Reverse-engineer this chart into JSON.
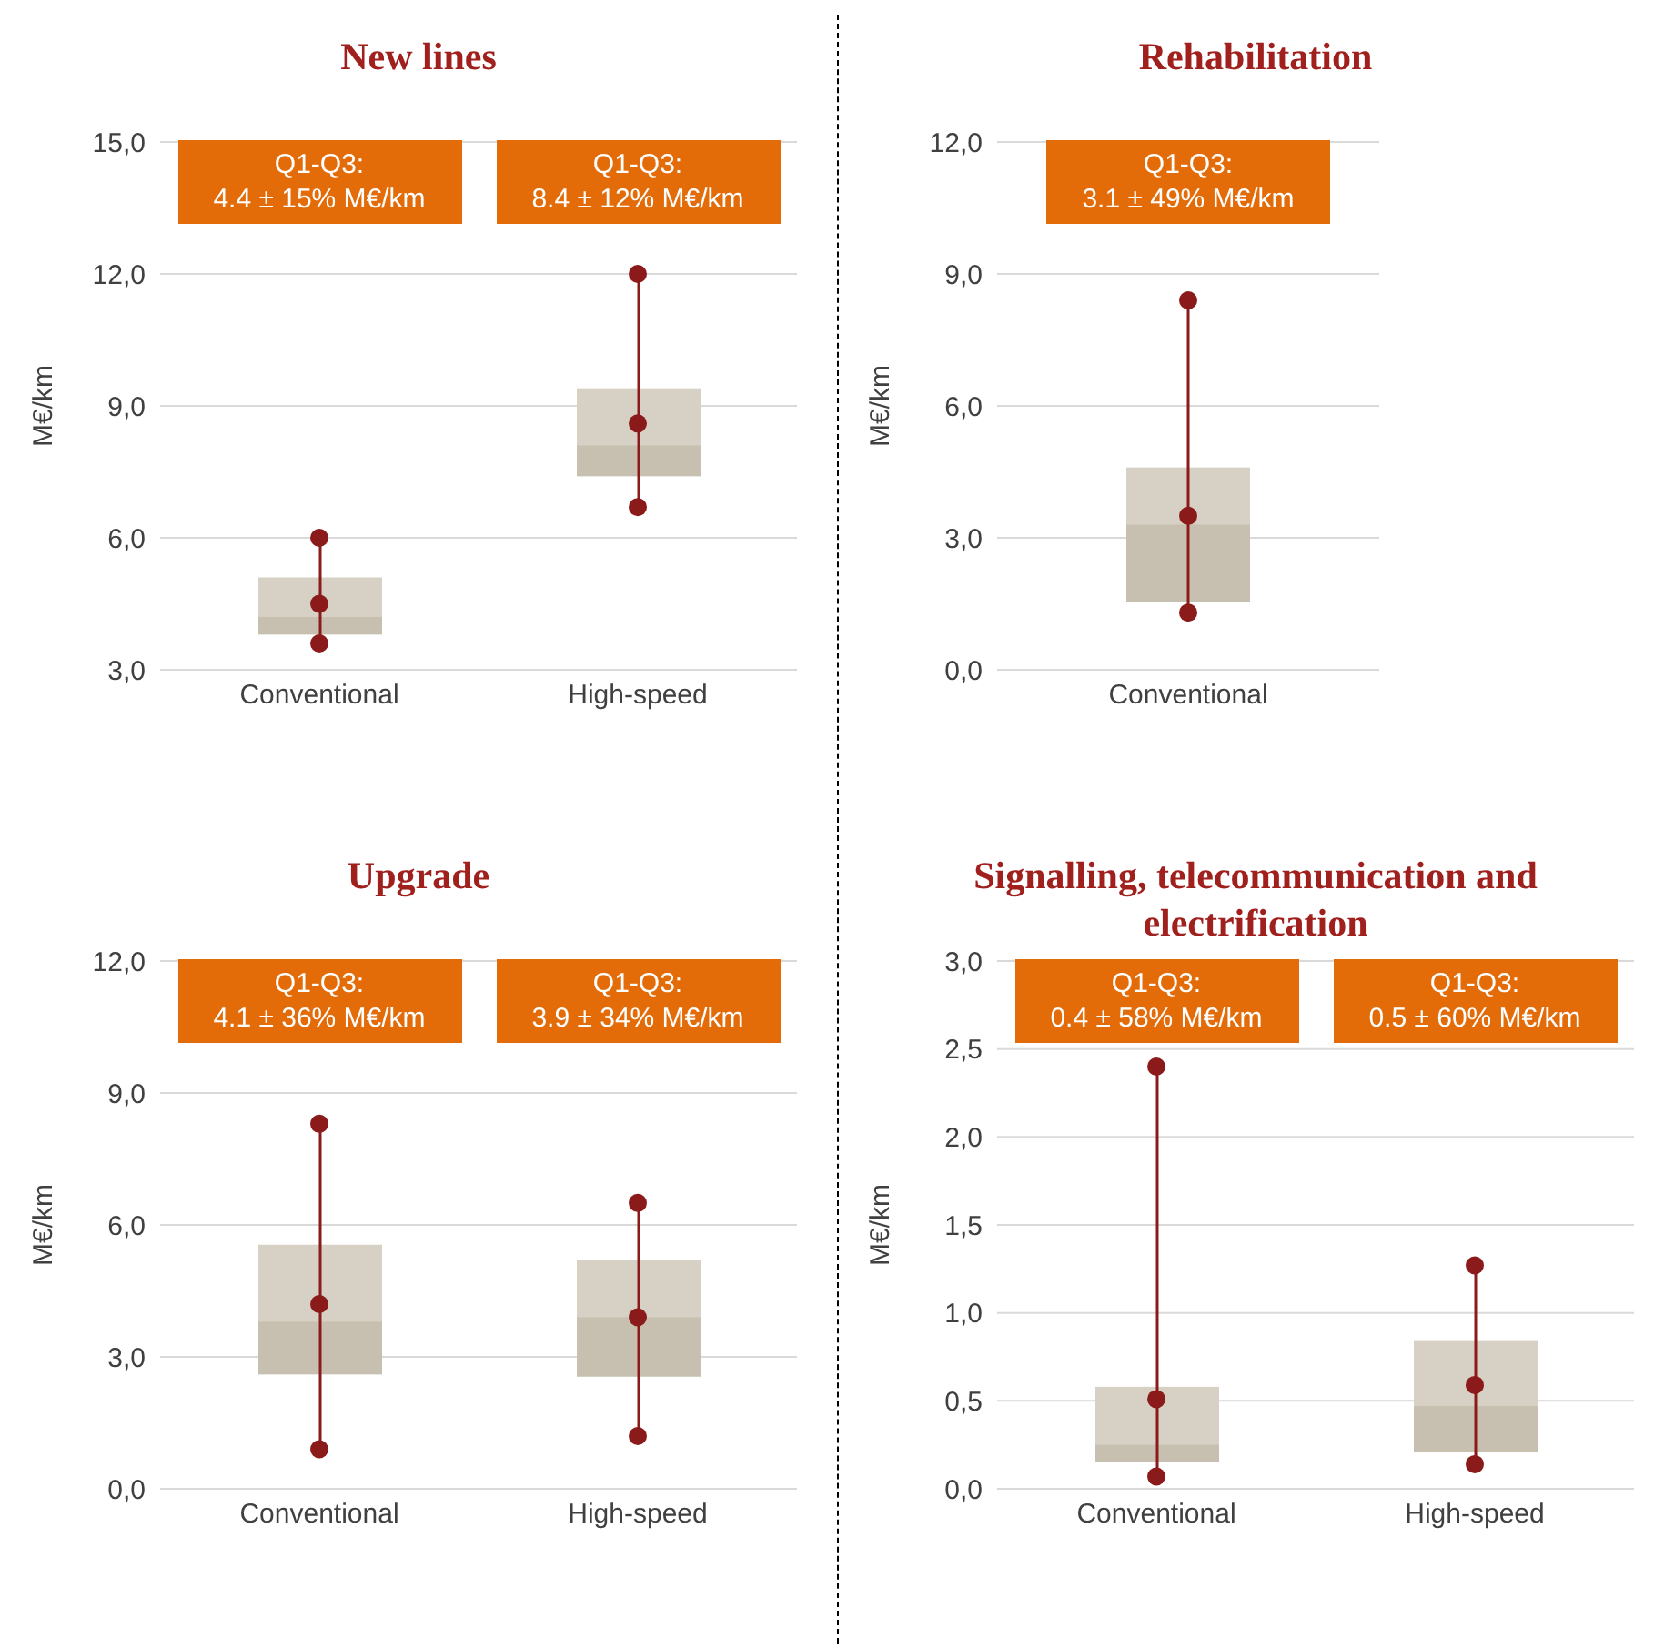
{
  "chart_data": [
    {
      "type": "box",
      "title": "New lines",
      "ylabel": "M€/km",
      "categories": [
        "Conventional",
        "High-speed"
      ],
      "series": [
        {
          "color": "#d6d1c4",
          "boxes": [
            {
              "low": 3.6,
              "q1": 3.8,
              "median": 4.2,
              "q3": 5.1,
              "high": 6.0
            },
            {
              "low": 6.7,
              "q1": 7.4,
              "median": 8.1,
              "q3": 9.4,
              "high": 12.0
            }
          ]
        },
        {
          "type": "scatter",
          "color": "#8b1a1a",
          "marker": "circle",
          "x": [
            "Conventional",
            "Conventional",
            "Conventional",
            "High-speed",
            "High-speed",
            "High-speed"
          ],
          "values": [
            3.6,
            4.5,
            6.0,
            6.7,
            8.6,
            12.0
          ]
        }
      ],
      "ylim": [
        3,
        15
      ],
      "yticks": [
        {
          "value": 3,
          "label": "3,0"
        },
        {
          "value": 6,
          "label": "6,0"
        },
        {
          "value": 9,
          "label": "9,0"
        },
        {
          "value": 12,
          "label": "12,0"
        },
        {
          "value": 15,
          "label": "15,0"
        }
      ],
      "grid": "y",
      "legend": false,
      "annotations": [
        "Q1-Q3:\n4.4 ± 15% M€/km",
        "Q1-Q3:\n8.4 ± 12% M€/km"
      ]
    },
    {
      "type": "box",
      "title": "Rehabilitation",
      "ylabel": "M€/km",
      "categories": [
        "Conventional"
      ],
      "series": [
        {
          "color": "#d6d1c4",
          "boxes": [
            {
              "low": 1.3,
              "q1": 1.55,
              "median": 3.3,
              "q3": 4.6,
              "high": 8.4
            }
          ]
        },
        {
          "type": "scatter",
          "color": "#8b1a1a",
          "marker": "circle",
          "x": [
            "Conventional",
            "Conventional",
            "Conventional"
          ],
          "values": [
            1.3,
            3.5,
            8.4
          ]
        }
      ],
      "ylim": [
        0,
        12
      ],
      "yticks": [
        {
          "value": 0,
          "label": "0,0"
        },
        {
          "value": 3,
          "label": "3,0"
        },
        {
          "value": 6,
          "label": "6,0"
        },
        {
          "value": 9,
          "label": "9,0"
        },
        {
          "value": 12,
          "label": "12,0"
        }
      ],
      "grid": "y",
      "legend": false,
      "annotations": [
        "Q1-Q3:\n3.1 ± 49% M€/km"
      ]
    },
    {
      "type": "box",
      "title": "Upgrade",
      "ylabel": "M€/km",
      "categories": [
        "Conventional",
        "High-speed"
      ],
      "series": [
        {
          "color": "#d6d1c4",
          "boxes": [
            {
              "low": 0.9,
              "q1": 2.6,
              "median": 3.8,
              "q3": 5.55,
              "high": 8.3
            },
            {
              "low": 1.2,
              "q1": 2.55,
              "median": 3.9,
              "q3": 5.2,
              "high": 6.5
            }
          ]
        },
        {
          "type": "scatter",
          "color": "#8b1a1a",
          "marker": "circle",
          "x": [
            "Conventional",
            "Conventional",
            "Conventional",
            "High-speed",
            "High-speed",
            "High-speed"
          ],
          "values": [
            0.9,
            4.2,
            8.3,
            1.2,
            3.9,
            6.5
          ]
        }
      ],
      "ylim": [
        0,
        12
      ],
      "yticks": [
        {
          "value": 0,
          "label": "0,0"
        },
        {
          "value": 3,
          "label": "3,0"
        },
        {
          "value": 6,
          "label": "6,0"
        },
        {
          "value": 9,
          "label": "9,0"
        },
        {
          "value": 12,
          "label": "12,0"
        }
      ],
      "grid": "y",
      "legend": false,
      "annotations": [
        "Q1-Q3:\n4.1 ± 36% M€/km",
        "Q1-Q3:\n3.9 ± 34% M€/km"
      ]
    },
    {
      "type": "box",
      "title": "Signalling, telecommunication and electrification",
      "ylabel": "M€/km",
      "categories": [
        "Conventional",
        "High-speed"
      ],
      "series": [
        {
          "color": "#d6d1c4",
          "boxes": [
            {
              "low": 0.07,
              "q1": 0.15,
              "median": 0.25,
              "q3": 0.58,
              "high": 2.4
            },
            {
              "low": 0.14,
              "q1": 0.21,
              "median": 0.47,
              "q3": 0.84,
              "high": 1.27
            }
          ]
        },
        {
          "type": "scatter",
          "color": "#8b1a1a",
          "marker": "circle",
          "x": [
            "Conventional",
            "Conventional",
            "Conventional",
            "High-speed",
            "High-speed",
            "High-speed"
          ],
          "values": [
            0.07,
            0.51,
            2.4,
            0.14,
            0.59,
            1.27
          ]
        }
      ],
      "ylim": [
        0,
        3
      ],
      "yticks": [
        {
          "value": 0,
          "label": "0,0"
        },
        {
          "value": 0.5,
          "label": "0,5"
        },
        {
          "value": 1,
          "label": "1,0"
        },
        {
          "value": 1.5,
          "label": "1,5"
        },
        {
          "value": 2,
          "label": "2,0"
        },
        {
          "value": 2.5,
          "label": "2,5"
        },
        {
          "value": 3,
          "label": "3,0"
        }
      ],
      "grid": "y",
      "legend": false,
      "annotations": [
        "Q1-Q3:\n0.4 ± 58% M€/km",
        "Q1-Q3:\n0.5 ± 60% M€/km"
      ]
    }
  ]
}
